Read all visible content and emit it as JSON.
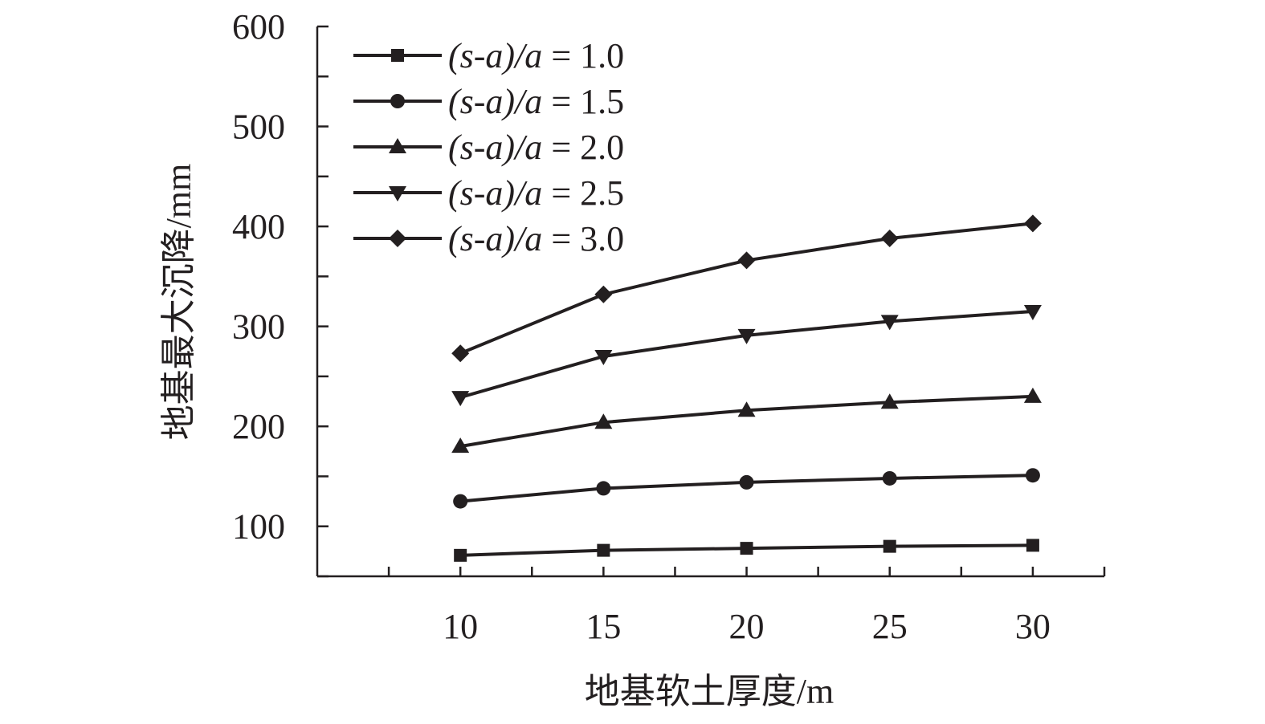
{
  "chart_data": {
    "type": "line",
    "xlabel": "地基软土厚度/m",
    "ylabel": "地基最大沉降/mm",
    "xlim": [
      5,
      32.5
    ],
    "ylim": [
      50,
      600
    ],
    "x": [
      10,
      15,
      20,
      25,
      30
    ],
    "x_ticks": [
      10,
      15,
      20,
      25,
      30
    ],
    "y_ticks": [
      100,
      200,
      300,
      400,
      500,
      600
    ],
    "legend_position": "top-left",
    "grid": false,
    "series": [
      {
        "name": "(s-a)/a = 1.0",
        "label": {
          "var": "(s-a)/a",
          "value": "= 1.0"
        },
        "marker": "square",
        "values": [
          71,
          76,
          78,
          80,
          81
        ]
      },
      {
        "name": "(s-a)/a = 1.5",
        "label": {
          "var": "(s-a)/a",
          "value": "= 1.5"
        },
        "marker": "circle",
        "values": [
          125,
          138,
          144,
          148,
          151
        ]
      },
      {
        "name": "(s-a)/a = 2.0",
        "label": {
          "var": "(s-a)/a",
          "value": "= 2.0"
        },
        "marker": "triangle",
        "values": [
          180,
          204,
          216,
          224,
          230
        ]
      },
      {
        "name": "(s-a)/a = 2.5",
        "label": {
          "var": "(s-a)/a",
          "value": "= 2.5"
        },
        "marker": "triangle-down",
        "values": [
          229,
          270,
          291,
          305,
          315
        ]
      },
      {
        "name": "(s-a)/a = 3.0",
        "label": {
          "var": "(s-a)/a",
          "value": "= 3.0"
        },
        "marker": "diamond",
        "values": [
          273,
          332,
          366,
          388,
          403
        ]
      }
    ],
    "colors": {
      "ink": "#231f20",
      "background": "#ffffff"
    }
  }
}
